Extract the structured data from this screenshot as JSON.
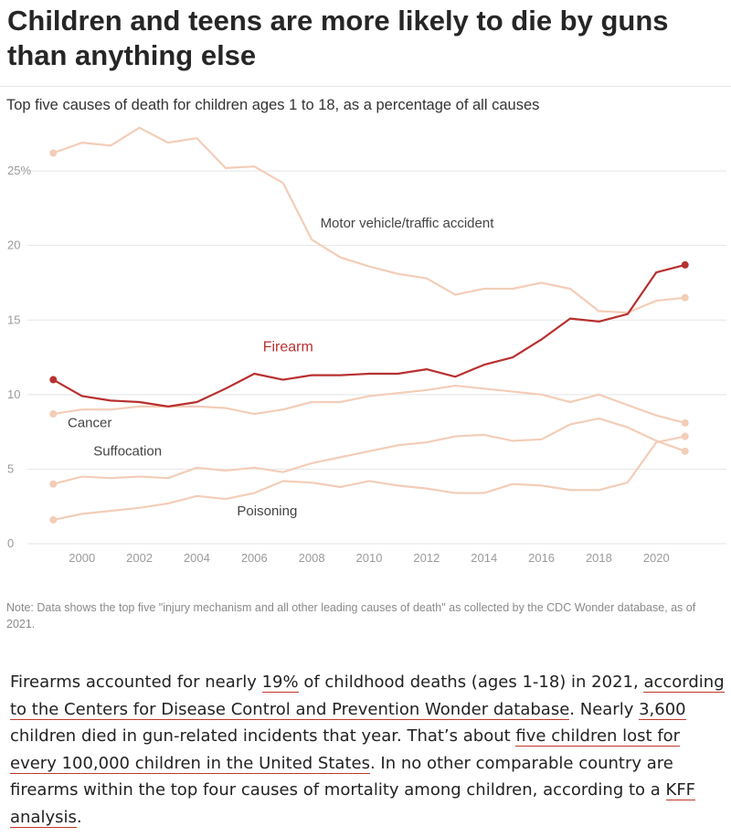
{
  "headline": "Children and teens are more likely to die by guns than anything else",
  "subtitle": "Top five causes of death for children ages 1 to 18, as a percentage of all causes",
  "note": "Note: Data shows the top five \"injury mechanism and all other leading causes of death\" as collected by the CDC Wonder database, as of 2021.",
  "article": {
    "t1": "Firearms accounted for nearly ",
    "l1": "19%",
    "t2": " of childhood deaths (ages 1-18) in 2021, ",
    "l2": "according to the Centers for Disease Control and Prevention Wonder database",
    "t3": ". Nearly ",
    "l3": "3,600",
    "t4": " children died in gun-related incidents that year. That’s about ",
    "l4": "five children lost for every 100,000 children in the United States",
    "t5": ". In no other comparable country are firearms within the top four causes of mortality among children, according to a ",
    "l5": "KFF analysis",
    "t6": "."
  },
  "colors": {
    "firearm": "#b8302f",
    "other": "#f3cdb8",
    "grid": "#e5e5e5"
  },
  "chart_data": {
    "type": "line",
    "title": "Top five causes of death for children ages 1 to 18, as a percentage of all causes",
    "x": [
      1999,
      2000,
      2001,
      2002,
      2003,
      2004,
      2005,
      2006,
      2007,
      2008,
      2009,
      2010,
      2011,
      2012,
      2013,
      2014,
      2015,
      2016,
      2017,
      2018,
      2019,
      2020,
      2021
    ],
    "xticks": [
      "2000",
      "2002",
      "2004",
      "2006",
      "2008",
      "2010",
      "2012",
      "2014",
      "2016",
      "2018",
      "2020"
    ],
    "xtick_values": [
      2000,
      2002,
      2004,
      2006,
      2008,
      2010,
      2012,
      2014,
      2016,
      2018,
      2020
    ],
    "yticks": [
      "0",
      "5",
      "10",
      "15",
      "20",
      "25%"
    ],
    "ytick_values": [
      0,
      5,
      10,
      15,
      20,
      25
    ],
    "ylim": [
      0,
      28.5
    ],
    "xlim": [
      1998.8,
      2021.9
    ],
    "grid": true,
    "series": [
      {
        "name": "Motor vehicle/traffic accident",
        "highlight": false,
        "values": [
          26.2,
          26.9,
          26.7,
          27.9,
          26.9,
          27.2,
          25.2,
          25.3,
          24.2,
          20.4,
          19.2,
          18.6,
          18.1,
          17.8,
          16.7,
          17.1,
          17.1,
          17.5,
          17.1,
          15.6,
          15.5,
          16.3,
          16.5
        ]
      },
      {
        "name": "Firearm",
        "highlight": true,
        "values": [
          11.0,
          9.9,
          9.6,
          9.5,
          9.2,
          9.5,
          10.4,
          11.4,
          11.0,
          11.3,
          11.3,
          11.4,
          11.4,
          11.7,
          11.2,
          12.0,
          12.5,
          13.7,
          15.1,
          14.9,
          15.4,
          18.2,
          18.7
        ]
      },
      {
        "name": "Cancer",
        "highlight": false,
        "values": [
          8.7,
          9.0,
          9.0,
          9.2,
          9.2,
          9.2,
          9.1,
          8.7,
          9.0,
          9.5,
          9.5,
          9.9,
          10.1,
          10.3,
          10.6,
          10.4,
          10.2,
          10.0,
          9.5,
          10.0,
          9.3,
          8.6,
          8.1
        ]
      },
      {
        "name": "Suffocation",
        "highlight": false,
        "values": [
          4.0,
          4.5,
          4.4,
          4.5,
          4.4,
          5.1,
          4.9,
          5.1,
          4.8,
          5.4,
          5.8,
          6.2,
          6.6,
          6.8,
          7.2,
          7.3,
          6.9,
          7.0,
          8.0,
          8.4,
          7.8,
          6.9,
          6.2
        ]
      },
      {
        "name": "Poisoning",
        "highlight": false,
        "values": [
          1.6,
          2.0,
          2.2,
          2.4,
          2.7,
          3.2,
          3.0,
          3.4,
          4.2,
          4.1,
          3.8,
          4.2,
          3.9,
          3.7,
          3.4,
          3.4,
          4.0,
          3.9,
          3.6,
          3.6,
          4.1,
          6.8,
          7.2
        ]
      }
    ]
  }
}
